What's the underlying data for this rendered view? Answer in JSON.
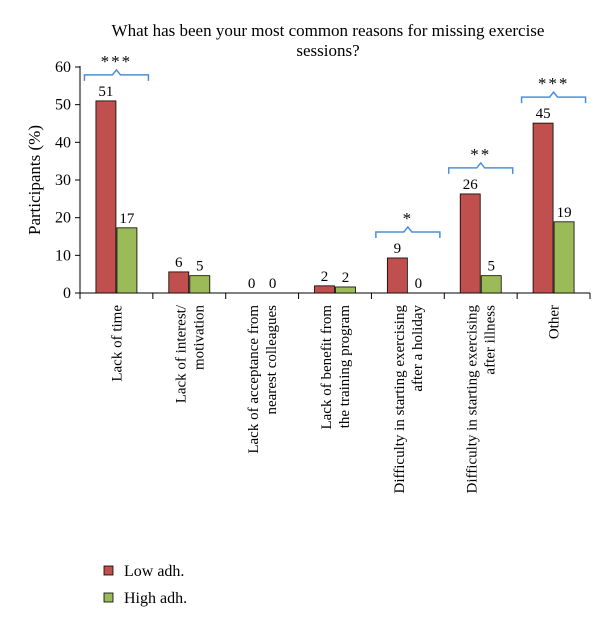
{
  "chart_data": {
    "type": "bar",
    "title_lines": [
      "What has been your most common reasons for missing exercise",
      "sessions?"
    ],
    "ylabel": "Participants (%)",
    "xlabel": "",
    "ylim": [
      0,
      60
    ],
    "yticks": [
      0,
      10,
      20,
      30,
      40,
      50,
      60
    ],
    "grid": false,
    "legend_position": "bottom-left",
    "categories": [
      [
        "Lack of time"
      ],
      [
        "Lack of interest/",
        "motivation"
      ],
      [
        "Lack of acceptance from",
        "nearest colleagues"
      ],
      [
        "Lack of benefit from",
        "the training program"
      ],
      [
        "Difficulty in starting exercising",
        "after a holiday"
      ],
      [
        "Difficulty in starting exercising",
        "after illness"
      ],
      [
        "Other"
      ]
    ],
    "series": [
      {
        "name": "Low adh.",
        "color": "#c0504d",
        "values": [
          51,
          5.6,
          0,
          1.9,
          9.3,
          26.3,
          45.1
        ],
        "labels": [
          "51",
          "6",
          "0",
          "2",
          "9",
          "26",
          "45"
        ]
      },
      {
        "name": "High adh.",
        "color": "#9bbb59",
        "values": [
          17.3,
          4.6,
          0,
          1.6,
          0,
          4.6,
          18.9
        ],
        "labels": [
          "17",
          "5",
          "0",
          "2",
          "0",
          "5",
          "19"
        ]
      }
    ],
    "significance": [
      {
        "category_index": 0,
        "label": "***"
      },
      {
        "category_index": 4,
        "label": "*"
      },
      {
        "category_index": 5,
        "label": "**"
      },
      {
        "category_index": 6,
        "label": "***"
      }
    ]
  }
}
